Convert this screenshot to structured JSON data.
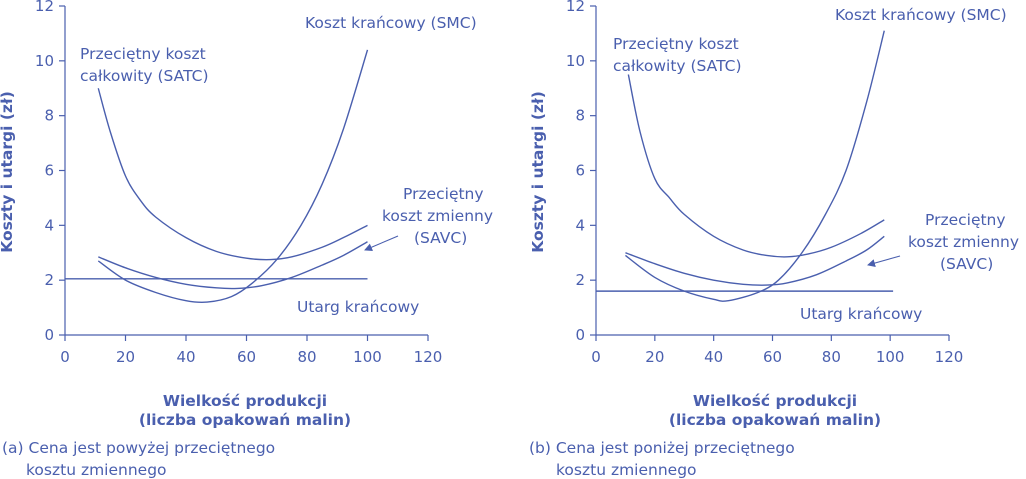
{
  "colors": {
    "ink": "#4a5fae"
  },
  "chart_data": [
    {
      "type": "line",
      "caption_lines": [
        "(a) Cena jest powyżej przeciętnego",
        "kosztu zmiennego"
      ],
      "xlabel_lines": [
        "Wielkość produkcji",
        "(liczba opakowań malin)"
      ],
      "ylabel": "Koszty i utargi (zł)",
      "xlim": [
        0,
        120
      ],
      "ylim": [
        0,
        12
      ],
      "xticks": [
        0,
        20,
        40,
        60,
        80,
        100,
        120
      ],
      "yticks": [
        0,
        2,
        4,
        6,
        8,
        10,
        12
      ],
      "series": [
        {
          "name": "SMC",
          "x": [
            11,
            20,
            30,
            40,
            47,
            55,
            62,
            70,
            78,
            85,
            92,
            100
          ],
          "y": [
            2.7,
            2.0,
            1.55,
            1.25,
            1.2,
            1.4,
            1.9,
            2.75,
            4.0,
            5.5,
            7.5,
            10.4
          ]
        },
        {
          "name": "SATC",
          "x": [
            11,
            15,
            20,
            25,
            30,
            40,
            50,
            60,
            68,
            75,
            85,
            92,
            100
          ],
          "y": [
            9.0,
            7.4,
            5.8,
            4.9,
            4.3,
            3.55,
            3.05,
            2.8,
            2.75,
            2.85,
            3.2,
            3.55,
            4.0
          ]
        },
        {
          "name": "SAVC",
          "x": [
            11,
            20,
            30,
            40,
            50,
            57,
            65,
            75,
            85,
            92,
            100
          ],
          "y": [
            2.85,
            2.45,
            2.1,
            1.85,
            1.72,
            1.7,
            1.8,
            2.1,
            2.55,
            2.9,
            3.4
          ]
        },
        {
          "name": "Utarg krańcowy",
          "x": [
            0,
            100
          ],
          "y": [
            2.05,
            2.05
          ]
        }
      ],
      "labels": {
        "smc": "Koszt krańcowy (SMC)",
        "satc_lines": [
          "Przeciętny koszt",
          "całkowity (SATC)"
        ],
        "savc_lines": [
          "Przeciętny",
          "koszt zmienny",
          "(SAVC)"
        ],
        "mr": "Utarg krańcowy"
      }
    },
    {
      "type": "line",
      "caption_lines": [
        "(b) Cena jest poniżej przeciętnego",
        "kosztu zmiennego"
      ],
      "xlabel_lines": [
        "Wielkość produkcji",
        "(liczba opakowań malin)"
      ],
      "ylabel": "Koszty i utargi (zł)",
      "xlim": [
        0,
        120
      ],
      "ylim": [
        0,
        12
      ],
      "xticks": [
        0,
        20,
        40,
        60,
        80,
        100,
        120
      ],
      "yticks": [
        0,
        2,
        4,
        6,
        8,
        10,
        12
      ],
      "series": [
        {
          "name": "SMC",
          "x": [
            10,
            20,
            30,
            40,
            45,
            55,
            62,
            70,
            78,
            85,
            92,
            98
          ],
          "y": [
            2.9,
            2.1,
            1.6,
            1.3,
            1.25,
            1.55,
            2.0,
            3.0,
            4.4,
            6.0,
            8.5,
            11.1
          ]
        },
        {
          "name": "SATC",
          "x": [
            11,
            15,
            20,
            25,
            30,
            40,
            50,
            58,
            65,
            72,
            80,
            90,
            98
          ],
          "y": [
            9.5,
            7.4,
            5.7,
            5.0,
            4.4,
            3.6,
            3.1,
            2.9,
            2.85,
            2.95,
            3.2,
            3.7,
            4.2
          ]
        },
        {
          "name": "SAVC",
          "x": [
            10,
            20,
            30,
            40,
            50,
            58,
            65,
            75,
            85,
            92,
            98
          ],
          "y": [
            3.0,
            2.6,
            2.25,
            2.0,
            1.85,
            1.82,
            1.9,
            2.2,
            2.7,
            3.1,
            3.6
          ]
        },
        {
          "name": "Utarg krańcowy",
          "x": [
            0,
            101
          ],
          "y": [
            1.6,
            1.6
          ]
        }
      ],
      "labels": {
        "smc": "Koszt krańcowy (SMC)",
        "satc_lines": [
          "Przeciętny koszt",
          "całkowity (SATC)"
        ],
        "savc_lines": [
          "Przeciętny",
          "koszt zmienny",
          "(SAVC)"
        ],
        "mr": "Utarg krańcowy"
      }
    }
  ]
}
